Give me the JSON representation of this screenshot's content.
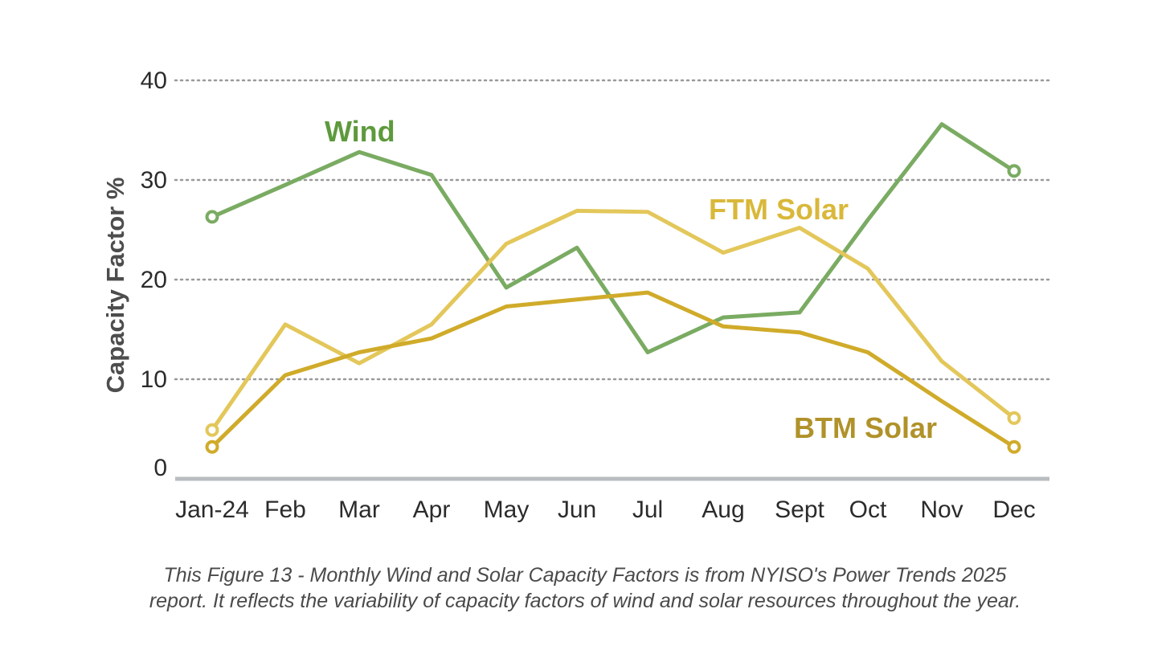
{
  "chart_data": {
    "type": "line",
    "ylabel": "Capacity Factor %",
    "ylim": [
      0,
      40
    ],
    "yticks": [
      0,
      10,
      20,
      30,
      40
    ],
    "grid": "horizontal dotted",
    "categories": [
      "Jan-24",
      "Feb",
      "Mar",
      "Apr",
      "May",
      "Jun",
      "Jul",
      "Aug",
      "Sept",
      "Oct",
      "Nov",
      "Dec"
    ],
    "series": [
      {
        "name": "Wind",
        "color": "#7aab62",
        "label_color": "#5e9a3c",
        "values": [
          26.3,
          29.5,
          32.8,
          30.5,
          19.2,
          23.2,
          12.7,
          16.2,
          16.7,
          26.0,
          35.6,
          30.9
        ]
      },
      {
        "name": "FTM Solar",
        "color": "#e3c75a",
        "label_color": "#d9b83a",
        "values": [
          4.9,
          15.5,
          11.6,
          15.5,
          23.6,
          26.9,
          26.8,
          22.7,
          25.2,
          21.1,
          11.8,
          6.1
        ]
      },
      {
        "name": "BTM Solar",
        "color": "#d0ab2a",
        "label_color": "#b0922a",
        "values": [
          3.2,
          10.4,
          12.7,
          14.1,
          17.3,
          18.0,
          18.7,
          15.3,
          14.7,
          12.7,
          7.8,
          3.2
        ]
      }
    ]
  },
  "caption": {
    "line1": "This Figure 13 - Monthly Wind and Solar Capacity Factors is from NYISO's Power Trends 2025",
    "line2": "report. It reflects the variability of capacity factors of wind and solar resources throughout the year."
  }
}
